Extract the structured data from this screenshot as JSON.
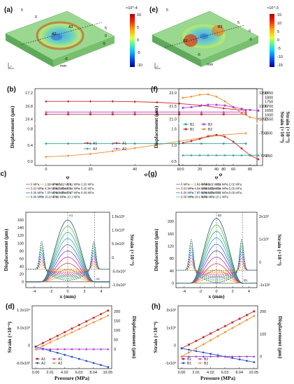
{
  "panels": {
    "a": {
      "label": "(a)",
      "probe": "A1",
      "probe2": "A2",
      "unit": "mm",
      "ticks": [
        "5",
        "0",
        "-5",
        "5",
        "0",
        "-5"
      ],
      "colorbar": {
        "exp": "×10^-4",
        "ticks": [
          "10",
          "5",
          "0",
          "-5",
          "-10"
        ]
      }
    },
    "e": {
      "label": "(e)",
      "probe": "B1",
      "probe2": "B2",
      "unit": "mm",
      "ticks": [
        "5",
        "0",
        "-5",
        "5",
        "0",
        "-5"
      ],
      "colorbar": {
        "exp": "×10^-3",
        "ticks": [
          "15",
          "10",
          "5",
          "0",
          "-5",
          "-10",
          "-15"
        ]
      }
    }
  },
  "colors": {
    "red": "#c62828",
    "orange": "#f28c28",
    "teal": "#2aa198",
    "purple": "#b03fd8",
    "blue": "#2250c8",
    "slab": "#8fd28a"
  },
  "chart_data": [
    {
      "panel": "(b)",
      "type": "line",
      "xlabel": "φ",
      "ylabel": "Displacement (μm)",
      "y2label": "Strain (×10⁻⁶)",
      "x": [
        0,
        10,
        20,
        30,
        40,
        50,
        60,
        70,
        80,
        90
      ],
      "xticks": [
        "0",
        "20",
        "40",
        "60",
        "80"
      ],
      "ylim_upper": [
        16.2,
        17.2
      ],
      "yticks_upper": [
        "17.2",
        "16.8",
        "16.4"
      ],
      "ylim_lower": [
        -0.15,
        0.85
      ],
      "yticks_lower": [
        "0.8",
        "0.4",
        "0.0"
      ],
      "y2ticks_upper": [
        "1150",
        "1100",
        "1050"
      ],
      "y2ticks_lower": [
        "-700",
        "-720"
      ],
      "series": [
        {
          "name": "A1",
          "axis": "left",
          "color": "red",
          "values": [
            16.85,
            16.85,
            16.85,
            16.85,
            16.84,
            16.82,
            16.78,
            16.72,
            16.62,
            16.55
          ]
        },
        {
          "name": "A1",
          "axis": "right",
          "color": "red",
          "values": [
            1045,
            1045,
            1045,
            1045,
            1045,
            1045,
            1045,
            1045,
            1045,
            1045
          ]
        },
        {
          "name": "A2",
          "axis": "left",
          "color": "purple",
          "values": [
            16.5,
            16.5,
            16.5,
            16.5,
            16.5,
            16.5,
            16.5,
            16.5,
            16.5,
            16.5
          ]
        },
        {
          "name": "A2",
          "axis": "right",
          "color": "orange",
          "values": [
            0.02,
            0.05,
            0.1,
            0.17,
            0.25,
            0.34,
            0.43,
            0.52,
            0.6,
            0.64
          ]
        },
        {
          "name": "A2",
          "axis": "left",
          "color": "teal",
          "values": [
            0.37,
            0.37,
            0.37,
            0.37,
            0.37,
            0.37,
            0.37,
            0.37,
            0.37,
            0.37
          ]
        }
      ]
    },
    {
      "panel": "(f)",
      "type": "line",
      "xlabel": "φ",
      "ylabel": "Displacement (μm)",
      "y2label": "Strain (×10⁻⁶)",
      "x": [
        0,
        10,
        20,
        30,
        40,
        50,
        60,
        70,
        80,
        90
      ],
      "xticks": [
        "0",
        "20",
        "40",
        "60",
        "80"
      ],
      "ylim_upper": [
        20.9,
        22.1
      ],
      "yticks_upper": [
        "22.0",
        "21.5",
        "21.0"
      ],
      "y2ticks_upper": [
        "1850",
        "1800",
        "1750",
        "1700",
        "1650",
        "1600",
        "1550"
      ],
      "ylim_lower": [
        0.3,
        1.7
      ],
      "yticks_lower": [
        "1.5",
        "1.0",
        "0.5"
      ],
      "y2ticks_lower": [
        "-800",
        "-850"
      ],
      "series": [
        {
          "name": "B2",
          "axis": "right",
          "color": "orange",
          "values": [
            21.85,
            21.9,
            21.98,
            22.0,
            21.9,
            21.7,
            21.45,
            21.2,
            21.02,
            20.95
          ]
        },
        {
          "name": "B1",
          "axis": "left",
          "color": "purple",
          "values": [
            21.42,
            21.45,
            21.5,
            21.55,
            21.55,
            21.52,
            21.45,
            21.38,
            21.33,
            21.3
          ]
        },
        {
          "name": "B2",
          "axis": "left",
          "color": "red",
          "values": [
            1.05,
            1.12,
            1.2,
            1.3,
            1.35,
            1.28,
            1.1,
            0.85,
            0.6,
            0.45
          ]
        },
        {
          "name": "B1",
          "axis": "left",
          "color": "teal",
          "values": [
            0.6,
            0.6,
            0.6,
            0.6,
            0.6,
            0.6,
            0.6,
            0.6,
            0.6,
            0.6
          ]
        }
      ],
      "legend": [
        "B1",
        "B2",
        "B1",
        "B2"
      ]
    },
    {
      "panel": "(c)",
      "type": "line",
      "title": "φ",
      "xlabel": "x (mm)",
      "ylabel": "Displacement (μm)",
      "y2label": "Strain (×10⁻⁶)",
      "xlim": [
        -5,
        5
      ],
      "xticks": [
        "-4",
        "-2",
        "0",
        "2",
        "4"
      ],
      "ylim": [
        -15,
        180
      ],
      "yticks": [
        "0",
        "20",
        "40",
        "60",
        "80",
        "100",
        "120",
        "140",
        "160"
      ],
      "y2ticks": [
        "1.5x10³",
        "1.0x10³",
        "5.0x10²",
        "0",
        "-5.0x10²",
        "-1.0x10³"
      ],
      "marks": [
        "A1",
        "A2"
      ],
      "pressures": [
        0,
        1.01,
        2.02,
        3.03,
        4.04,
        5.05,
        6.06,
        7.07,
        8.08,
        9.09,
        10.1
      ],
      "peak_values": [
        0,
        16,
        32,
        48,
        64,
        80,
        96,
        112,
        128,
        144,
        160
      ],
      "legend": [
        "0 MPa",
        "1.01 MPa",
        "2.02 MPa",
        "3.03 MPa",
        "4.04 MPa",
        "5.05 MPa",
        "6.06 MPa",
        "7.07 MPa",
        "8.08 MPa",
        "9.09 MPa",
        "10.1 MPa",
        "0 MPa",
        "1.01 MPa",
        "2.02 MPa",
        "3.03 MPa",
        "4.04 MPa",
        "5.05 MPa",
        "6.06 MPa",
        "7.07 MPa",
        "8.08 MPa",
        "9.09 MPa",
        "10.1 MPa"
      ]
    },
    {
      "panel": "(g)",
      "type": "line",
      "title": "φ",
      "xlabel": "x (mm)",
      "ylabel": "Displacement (μm)",
      "y2label": "Strain (×10⁻⁶)",
      "xlim": [
        -5,
        5
      ],
      "xticks": [
        "-4",
        "-2",
        "0",
        "2",
        "4"
      ],
      "ylim": [
        -15,
        230
      ],
      "yticks": [
        "0",
        "40",
        "80",
        "120",
        "160",
        "200"
      ],
      "y2ticks": [
        "2x10³",
        "1x10³",
        "0",
        "-1x10³"
      ],
      "marks": [
        "B2",
        "B1"
      ],
      "pressures": [
        0,
        1.01,
        2.02,
        3.03,
        4.04,
        5.05,
        6.06,
        7.07,
        8.08,
        9.09,
        10.1
      ],
      "peak_values": [
        0,
        21,
        42,
        63,
        84,
        105,
        126,
        147,
        168,
        189,
        210
      ],
      "legend": [
        "0 MPa",
        "1.01 MPa",
        "2.02 MPa",
        "3.03 MPa",
        "4.04 MPa",
        "5.05 MPa",
        "6.06 MPa",
        "7.07 MPa",
        "8.08 MPa",
        "9.09 MPa",
        "10.1 MPa",
        "0 MPa",
        "1.01 MPa",
        "2.02 MPa",
        "3.03 MPa",
        "4.04 MPa",
        "5.05 MPa",
        "6.06 MPa",
        "7.07 MPa",
        "8.08 MPa",
        "9.09 MPa",
        "10.1 MPa"
      ]
    },
    {
      "panel": "(d)",
      "type": "line",
      "xlabel": "Pressure (MPa)",
      "ylabel": "Strain (×10⁻⁶)",
      "y2label": "Displacement (μm)",
      "x": [
        0,
        1.01,
        2.02,
        3.03,
        4.04,
        5.05,
        6.06,
        7.07,
        8.08,
        9.09,
        10.1
      ],
      "xticks": [
        "0.00",
        "2.01",
        "4.02",
        "6.03",
        "8.04",
        "10.05"
      ],
      "ylim": [
        -7000,
        13000
      ],
      "yticks": [
        "1.2x10⁴",
        "6.0x10³",
        "0",
        "-6.0x10³"
      ],
      "y2lim": [
        -90,
        200
      ],
      "y2ticks": [
        "200",
        "150",
        "100",
        "50",
        "0"
      ],
      "series": [
        {
          "name": "A1",
          "axis": "left",
          "color": "red",
          "values": [
            0,
            1150,
            2300,
            3450,
            4600,
            5750,
            6900,
            8050,
            9200,
            10350,
            11500
          ]
        },
        {
          "name": "A2",
          "axis": "left",
          "color": "blue",
          "values": [
            0,
            -650,
            -1300,
            -1950,
            -2600,
            -3250,
            -3900,
            -4550,
            -5200,
            -5850,
            -6500
          ]
        },
        {
          "name": "A1",
          "axis": "right",
          "color": "purple",
          "values": [
            0,
            0,
            0,
            0,
            0,
            0,
            0,
            0,
            0,
            0,
            0
          ]
        },
        {
          "name": "A2",
          "axis": "right",
          "color": "orange",
          "values": [
            0,
            15.5,
            31,
            46.5,
            62,
            77.5,
            93,
            108.5,
            124,
            139.5,
            155
          ]
        }
      ],
      "legend": [
        "A1",
        "A2",
        "A1",
        "A2"
      ]
    },
    {
      "panel": "(h)",
      "type": "line",
      "xlabel": "Pressure (MPa)",
      "ylabel": "Strain (×10⁻⁶)",
      "y2label": "Displacement (μm)",
      "x": [
        0,
        1.01,
        2.02,
        3.03,
        4.04,
        5.05,
        6.06,
        7.07,
        8.08,
        9.09,
        10.1
      ],
      "xticks": [
        "0.00",
        "2.01",
        "4.02",
        "6.03",
        "8.04",
        "10.05"
      ],
      "ylim": [
        -1100,
        2300
      ],
      "yticks": [
        "2x10³",
        "1x10³",
        "0",
        "-1x10³"
      ],
      "y2lim": [
        -60,
        250
      ],
      "y2ticks": [
        "200",
        "100",
        "0"
      ],
      "series": [
        {
          "name": "B1",
          "axis": "left",
          "color": "red",
          "values": [
            0,
            200,
            400,
            600,
            800,
            1000,
            1200,
            1400,
            1600,
            1800,
            2000
          ]
        },
        {
          "name": "B2",
          "axis": "left",
          "color": "blue",
          "values": [
            0,
            -75,
            -150,
            -225,
            -300,
            -375,
            -450,
            -525,
            -600,
            -675,
            -750
          ]
        },
        {
          "name": "B1",
          "axis": "right",
          "color": "purple",
          "values": [
            0,
            0,
            0,
            0,
            0,
            0,
            0,
            0,
            0,
            0,
            0
          ]
        },
        {
          "name": "B2",
          "axis": "right",
          "color": "orange",
          "values": [
            0,
            20,
            40,
            60,
            80,
            100,
            120,
            140,
            160,
            180,
            200
          ]
        }
      ],
      "legend": [
        "B1",
        "B1",
        "B2",
        "B2"
      ]
    }
  ]
}
